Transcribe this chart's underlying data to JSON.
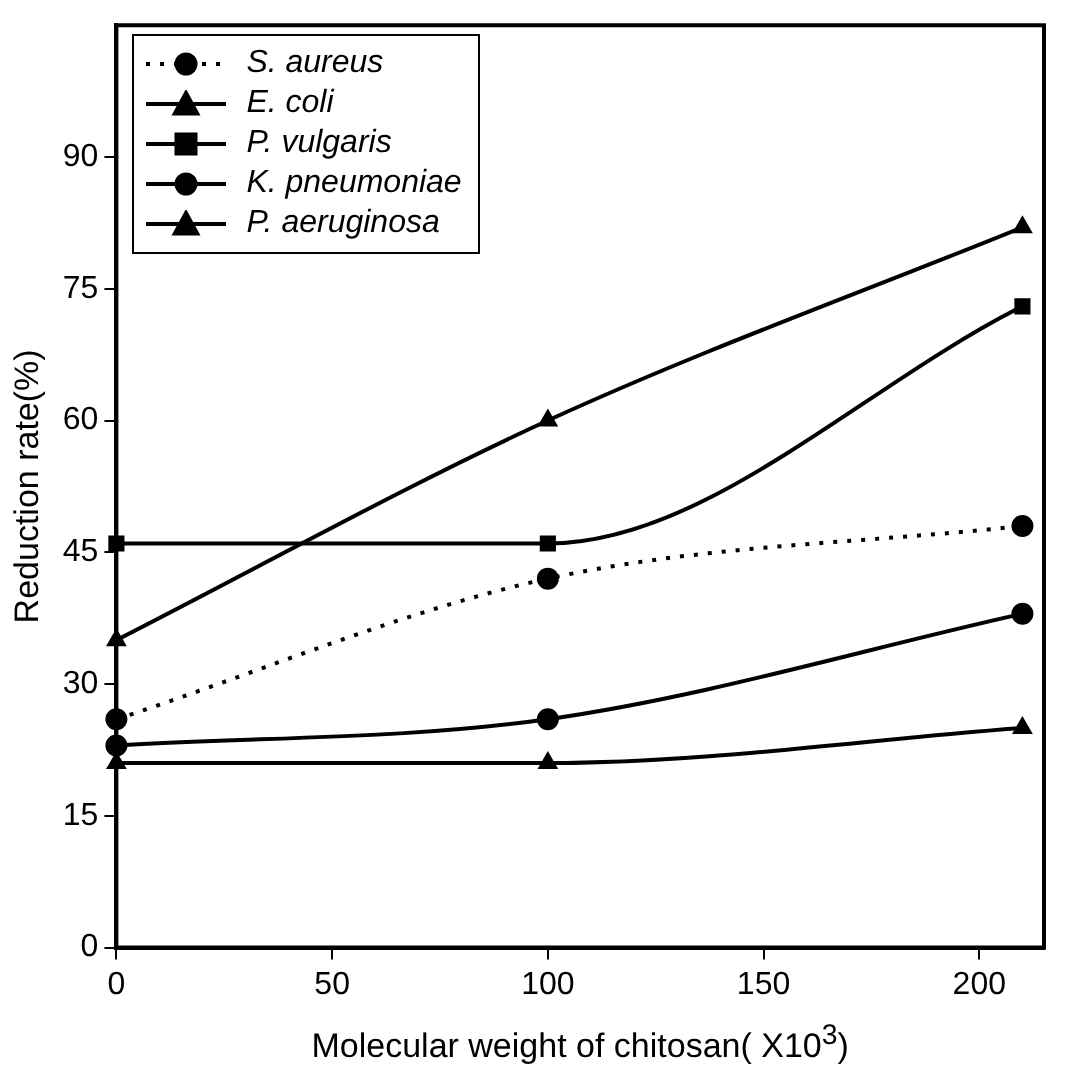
{
  "chart_data": {
    "type": "line",
    "xlabel": "Molecular weight of chitosan( X10$^{3}$)",
    "ylabel": "Reduction rate(%)",
    "x": [
      0,
      100,
      210
    ],
    "xlim": [
      0,
      215
    ],
    "xticks": [
      0,
      50,
      100,
      150,
      200
    ],
    "ylim": [
      0,
      105
    ],
    "yticks": [
      0,
      15,
      30,
      45,
      60,
      75,
      90
    ],
    "grid": false,
    "legend": "top left",
    "series": [
      {
        "name": "S. aureus",
        "color": "#000000",
        "marker": "circle",
        "line_style": "dotted",
        "values": [
          26,
          42,
          48
        ]
      },
      {
        "name": "E. coli",
        "color": "#000000",
        "marker": "triangle",
        "line_style": "solid",
        "values": [
          35,
          60,
          82
        ]
      },
      {
        "name": "P. vulgaris",
        "color": "#000000",
        "marker": "square",
        "line_style": "solid",
        "values": [
          46,
          46,
          73
        ]
      },
      {
        "name": "K. pneumoniae",
        "color": "#000000",
        "marker": "circle",
        "line_style": "solid",
        "values": [
          23,
          26,
          38
        ]
      },
      {
        "name": "P. aeruginosa",
        "color": "#000000",
        "marker": "triangle",
        "line_style": "solid",
        "values": [
          21,
          21,
          25
        ]
      }
    ]
  }
}
